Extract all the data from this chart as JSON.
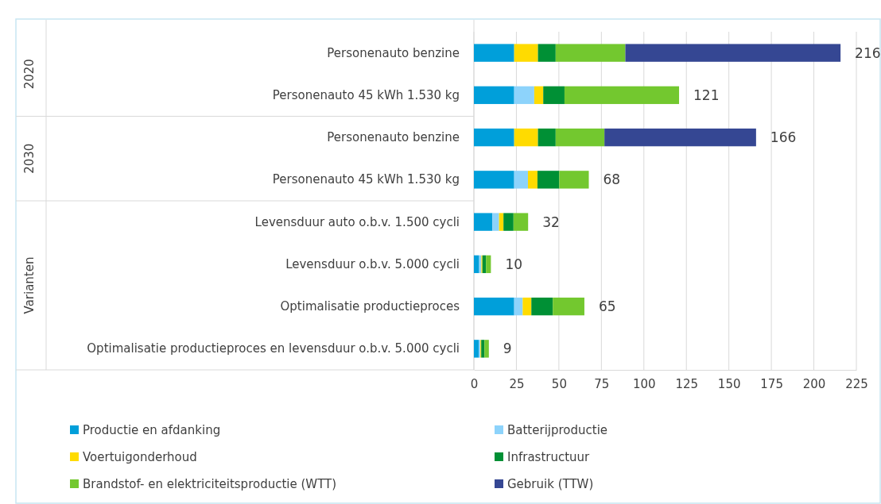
{
  "chart_data": {
    "type": "bar",
    "orientation": "horizontal",
    "stacked": true,
    "categories": [
      "Personenauto benzine",
      "Personenauto 45 kWh 1.530 kg",
      "Personenauto benzine",
      "Personenauto 45 kWh 1.530 kg",
      "Levensduur auto o.b.v. 1.500 cycli",
      "Levensduur o.b.v. 5.000 cycli",
      "Optimalisatie productieproces",
      "Optimalisatie productieproces en levensduur o.b.v. 5.000 cycli"
    ],
    "series": [
      {
        "name": "Productie en afdanking",
        "color": "#009fda",
        "values": [
          23.7,
          23.7,
          23.7,
          23.7,
          10.9,
          3.1,
          23.7,
          3
        ]
      },
      {
        "name": "Batterijproductie",
        "color": "#8dd3fb",
        "values": [
          null,
          11.8,
          null,
          8.1,
          3.9,
          1.3,
          5,
          0.8
        ]
      },
      {
        "name": "Voertuigonderhoud",
        "color": "#ffdb00",
        "values": [
          14,
          5.3,
          14,
          5.6,
          2.6,
          0.6,
          5.1,
          0.5
        ]
      },
      {
        "name": "Infrastructuur",
        "color": "#009035",
        "values": [
          10.4,
          12.5,
          10.4,
          12.8,
          5.9,
          2.1,
          12.6,
          1.9
        ]
      },
      {
        "name": "Brandstof- en elektriciteitsproductie (WTT)",
        "color": "#73c82f",
        "values": [
          41,
          67.4,
          28.7,
          17.4,
          8.6,
          2.9,
          18.6,
          2.6
        ]
      },
      {
        "name": "Gebruik (TTW)",
        "color": "#354793",
        "values": [
          126.6,
          null,
          89.2,
          null,
          null,
          null,
          null,
          null
        ]
      }
    ],
    "totals": [
      "216",
      "121",
      "166",
      "68",
      "32",
      "10",
      "65",
      "9"
    ],
    "annotations": [
      "2020",
      "2030",
      "Varianten"
    ],
    "xlim": [
      0,
      225
    ],
    "xticks": [
      0,
      25,
      50,
      75,
      100,
      125,
      150,
      175,
      200,
      225
    ],
    "grid": "x",
    "legend": "bottom"
  }
}
